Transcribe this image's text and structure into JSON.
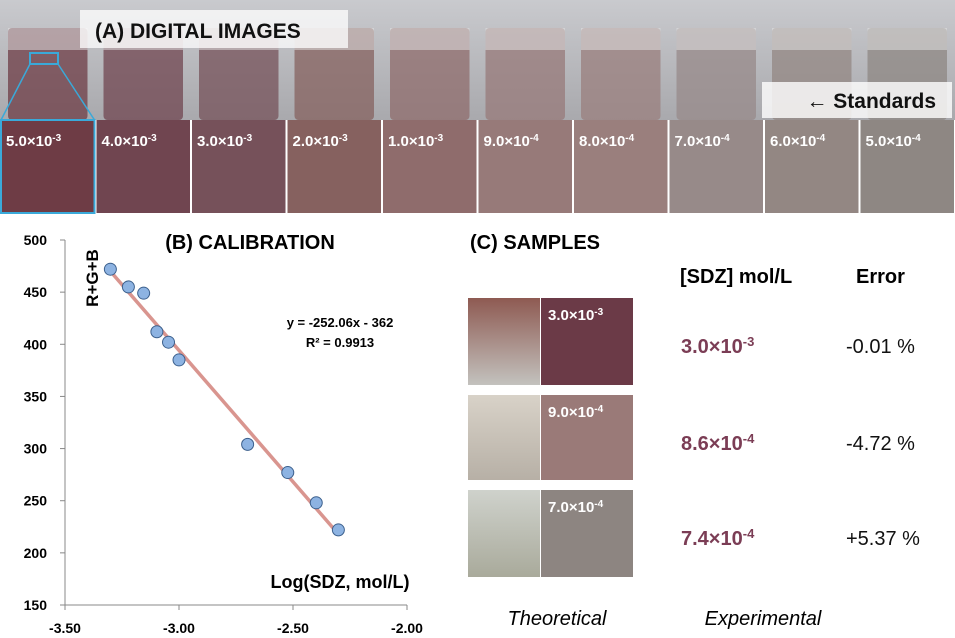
{
  "panel_a": {
    "title": "(A) DIGITAL IMAGES",
    "standards_label": "← Standards",
    "standards": [
      {
        "mantissa": "5.0×10",
        "exponent": "-3",
        "color": "#6e3c45"
      },
      {
        "mantissa": "4.0×10",
        "exponent": "-3",
        "color": "#704550"
      },
      {
        "mantissa": "3.0×10",
        "exponent": "-3",
        "color": "#76515a"
      },
      {
        "mantissa": "2.0×10",
        "exponent": "-3",
        "color": "#86615f"
      },
      {
        "mantissa": "1.0×10",
        "exponent": "-3",
        "color": "#8f6c6c"
      },
      {
        "mantissa": "9.0×10",
        "exponent": "-4",
        "color": "#977a79"
      },
      {
        "mantissa": "8.0×10",
        "exponent": "-4",
        "color": "#9a7f7d"
      },
      {
        "mantissa": "7.0×10",
        "exponent": "-4",
        "color": "#978a89"
      },
      {
        "mantissa": "6.0×10",
        "exponent": "-4",
        "color": "#938783"
      },
      {
        "mantissa": "5.0×10",
        "exponent": "-4",
        "color": "#8e8783"
      }
    ]
  },
  "chart_data": {
    "type": "scatter",
    "title": "(B) CALIBRATION",
    "x_label": "Log(SDZ, mol/L)",
    "y_label": "R+G+B",
    "x": [
      -2.301,
      -2.398,
      -2.523,
      -2.699,
      -3.0,
      -3.046,
      -3.097,
      -3.155,
      -3.222,
      -3.301
    ],
    "values": [
      222,
      248,
      277,
      304,
      385,
      402,
      412,
      449,
      455,
      472
    ],
    "color": "#8db3e2",
    "xlim": [
      -3.5,
      -2.0
    ],
    "ylim": [
      150,
      500
    ],
    "xticks": [
      {
        "value": -3.5,
        "label": "-3.50"
      },
      {
        "value": -3.0,
        "label": "-3.00"
      },
      {
        "value": -2.5,
        "label": "-2.50"
      },
      {
        "value": -2.0,
        "label": "-2.00"
      }
    ],
    "yticks": [
      150,
      200,
      250,
      300,
      350,
      400,
      450,
      500
    ],
    "trendline": {
      "slope": -252.06,
      "intercept": -362,
      "color": "#d9958f"
    },
    "annotations": [
      "y = -252.06x - 362",
      "R² = 0.9913"
    ]
  },
  "panel_c": {
    "title": "(C) SAMPLES",
    "headers": [
      "[SDZ] mol/L",
      "Error"
    ],
    "rows": [
      {
        "theoretical": {
          "mantissa": "3.0×10",
          "exponent": "-3",
          "color": "#6b3a47"
        },
        "experimental": {
          "mantissa": "3.0×10",
          "exponent": "-3"
        },
        "error": "-0.01 %"
      },
      {
        "theoretical": {
          "mantissa": "9.0×10",
          "exponent": "-4",
          "color": "#9a7a78"
        },
        "experimental": {
          "mantissa": "8.6×10",
          "exponent": "-4"
        },
        "error": "-4.72 %"
      },
      {
        "theoretical": {
          "mantissa": "7.0×10",
          "exponent": "-4",
          "color": "#8d8581"
        },
        "experimental": {
          "mantissa": "7.4×10",
          "exponent": "-4"
        },
        "error": "+5.37 %"
      }
    ],
    "footer": [
      "Theoretical",
      "Experimental"
    ]
  }
}
